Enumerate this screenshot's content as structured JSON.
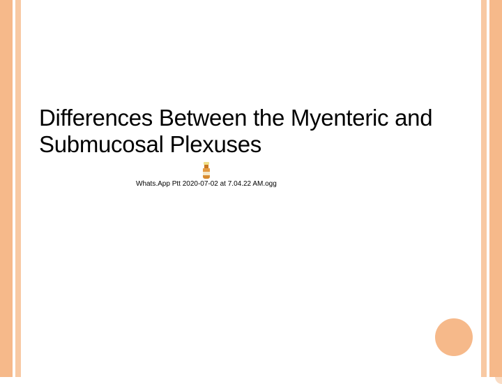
{
  "theme": {
    "accent_color": "#f6b98a",
    "accent_color_light": "#f8c9a3",
    "circle_color": "#f6b98a",
    "background": "#ffffff",
    "text_color": "#000000"
  },
  "slide": {
    "title": "Differences Between the Myenteric and Submucosal Plexuses",
    "title_fontsize": 33
  },
  "attachment": {
    "filename": "Whats.App Ptt 2020-07-02 at 7.04.22 AM.ogg",
    "icon_type": "audio-bottle"
  },
  "decorations": {
    "circle_main": {
      "diameter": 54,
      "color": "#f6b98a"
    }
  }
}
